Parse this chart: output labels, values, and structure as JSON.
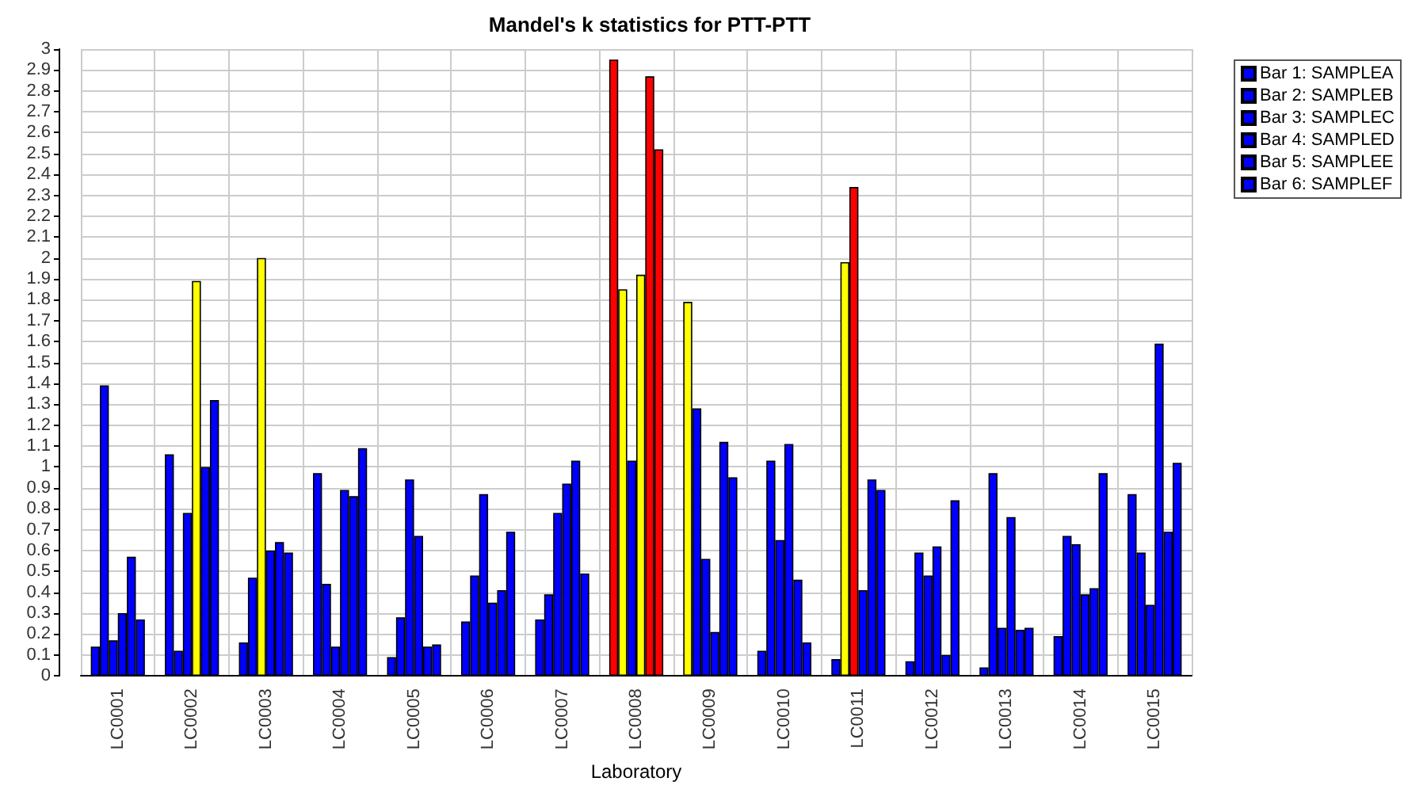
{
  "chart_data": {
    "type": "bar",
    "title": "Mandel's k statistics for PTT-PTT",
    "xlabel": "Laboratory",
    "categories": [
      "LC0001",
      "LC0002",
      "LC0003",
      "LC0004",
      "LC0005",
      "LC0006",
      "LC0007",
      "LC0008",
      "LC0009",
      "LC0010",
      "LC0011",
      "LC0012",
      "LC0013",
      "LC0014",
      "LC0015"
    ],
    "series": [
      {
        "name": "Bar 1: SAMPLEA",
        "values": [
          0.14,
          1.06,
          0.16,
          0.97,
          0.09,
          0.26,
          0.27,
          2.95,
          1.79,
          0.12,
          0.08,
          0.07,
          0.04,
          0.19,
          0.87
        ],
        "colors": [
          "#0000ff",
          "#0000ff",
          "#0000ff",
          "#0000ff",
          "#0000ff",
          "#0000ff",
          "#0000ff",
          "#ff0000",
          "#ffff00",
          "#0000ff",
          "#0000ff",
          "#0000ff",
          "#0000ff",
          "#0000ff",
          "#0000ff"
        ]
      },
      {
        "name": "Bar 2: SAMPLEB",
        "values": [
          1.39,
          0.12,
          0.47,
          0.44,
          0.28,
          0.48,
          0.39,
          1.85,
          1.28,
          1.03,
          1.98,
          0.59,
          0.97,
          0.67,
          0.59
        ],
        "colors": [
          "#0000ff",
          "#0000ff",
          "#0000ff",
          "#0000ff",
          "#0000ff",
          "#0000ff",
          "#0000ff",
          "#ffff00",
          "#0000ff",
          "#0000ff",
          "#ffff00",
          "#0000ff",
          "#0000ff",
          "#0000ff",
          "#0000ff"
        ]
      },
      {
        "name": "Bar 3: SAMPLEC",
        "values": [
          0.17,
          0.78,
          2.0,
          0.14,
          0.94,
          0.87,
          0.78,
          1.03,
          0.56,
          0.65,
          2.34,
          0.48,
          0.23,
          0.63,
          0.34
        ],
        "colors": [
          "#0000ff",
          "#0000ff",
          "#ffff00",
          "#0000ff",
          "#0000ff",
          "#0000ff",
          "#0000ff",
          "#0000ff",
          "#0000ff",
          "#0000ff",
          "#ff0000",
          "#0000ff",
          "#0000ff",
          "#0000ff",
          "#0000ff"
        ]
      },
      {
        "name": "Bar 4: SAMPLED",
        "values": [
          0.3,
          1.89,
          0.6,
          0.89,
          0.67,
          0.35,
          0.92,
          1.92,
          0.21,
          1.11,
          0.41,
          0.62,
          0.76,
          0.39,
          1.59
        ],
        "colors": [
          "#0000ff",
          "#ffff00",
          "#0000ff",
          "#0000ff",
          "#0000ff",
          "#0000ff",
          "#0000ff",
          "#ffff00",
          "#0000ff",
          "#0000ff",
          "#0000ff",
          "#0000ff",
          "#0000ff",
          "#0000ff",
          "#0000ff"
        ]
      },
      {
        "name": "Bar 5: SAMPLEE",
        "values": [
          0.57,
          1.0,
          0.64,
          0.86,
          0.14,
          0.41,
          1.03,
          2.87,
          1.12,
          0.46,
          0.94,
          0.1,
          0.22,
          0.42,
          0.69
        ],
        "colors": [
          "#0000ff",
          "#0000ff",
          "#0000ff",
          "#0000ff",
          "#0000ff",
          "#0000ff",
          "#0000ff",
          "#ff0000",
          "#0000ff",
          "#0000ff",
          "#0000ff",
          "#0000ff",
          "#0000ff",
          "#0000ff",
          "#0000ff"
        ]
      },
      {
        "name": "Bar 6: SAMPLEF",
        "values": [
          0.27,
          1.32,
          0.59,
          1.09,
          0.15,
          0.69,
          0.49,
          2.52,
          0.95,
          0.16,
          0.89,
          0.84,
          0.23,
          0.97,
          1.02
        ],
        "colors": [
          "#0000ff",
          "#0000ff",
          "#0000ff",
          "#0000ff",
          "#0000ff",
          "#0000ff",
          "#0000ff",
          "#ff0000",
          "#0000ff",
          "#0000ff",
          "#0000ff",
          "#0000ff",
          "#0000ff",
          "#0000ff",
          "#0000ff"
        ]
      }
    ],
    "ylim": [
      0,
      3
    ],
    "yticks": [
      0,
      0.1,
      0.2,
      0.3,
      0.4,
      0.5,
      0.6,
      0.7,
      0.8,
      0.9,
      1,
      1.1,
      1.2,
      1.3,
      1.4,
      1.5,
      1.6,
      1.7,
      1.8,
      1.9,
      2,
      2.1,
      2.2,
      2.3,
      2.4,
      2.5,
      2.6,
      2.7,
      2.8,
      2.9,
      3
    ],
    "grid": true,
    "legend": "top right"
  }
}
